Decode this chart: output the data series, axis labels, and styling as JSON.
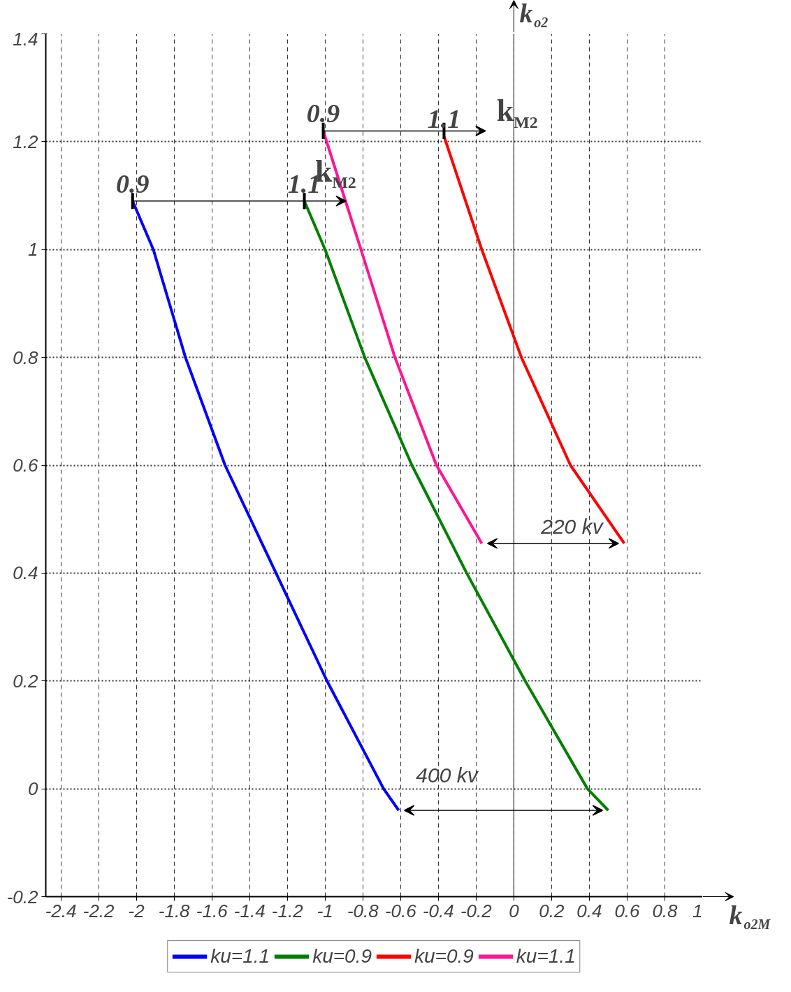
{
  "chart_data": {
    "type": "line",
    "xlabel": "k$_{o2M}$",
    "ylabel": "k$_{o2}$",
    "xlim": [
      -2.48,
      1.0
    ],
    "ylim": [
      -0.2,
      1.4
    ],
    "xticks": [
      -2.4,
      -2.2,
      -2,
      -1.8,
      -1.6,
      -1.4,
      -1.2,
      -1,
      -0.8,
      -0.6,
      -0.4,
      -0.2,
      0,
      0.2,
      0.4,
      0.6,
      0.8,
      1
    ],
    "yticks": [
      -0.2,
      0,
      0.2,
      0.4,
      0.6,
      0.8,
      1,
      1.2,
      1.4
    ],
    "grid": true,
    "legend": "bottom",
    "marker": "none",
    "line_style": "solid",
    "series": [
      {
        "name": "ku=1.1",
        "color": "#0000ff",
        "x": [
          -2.02,
          -1.91,
          -1.74,
          -1.53,
          -1.26,
          -0.99,
          -0.69,
          -0.61
        ],
        "values": [
          1.09,
          1.0,
          0.8,
          0.6,
          0.4,
          0.2,
          0.0,
          -0.04
        ]
      },
      {
        "name": "ku=0.9",
        "color": "#008000",
        "x": [
          -1.11,
          -1.0,
          -0.79,
          -0.54,
          -0.25,
          0.06,
          0.39,
          0.5
        ],
        "values": [
          1.09,
          1.0,
          0.8,
          0.6,
          0.4,
          0.2,
          0.0,
          -0.04
        ]
      },
      {
        "name": "ku=0.9",
        "color": "#ff0000",
        "x": [
          -0.37,
          -0.17,
          0.04,
          0.3,
          0.585
        ],
        "values": [
          1.21,
          1.0,
          0.8,
          0.6,
          0.455
        ]
      },
      {
        "name": "ku=1.1",
        "color": "#ff1493",
        "x": [
          -1.01,
          -0.81,
          -0.63,
          -0.41,
          -0.17
        ],
        "values": [
          1.22,
          1.0,
          0.8,
          0.6,
          0.455
        ]
      }
    ],
    "annotations": [
      {
        "text": "0.9",
        "x": -2.02,
        "y": 1.09
      },
      {
        "text": "1.1",
        "x": -1.11,
        "y": 1.09
      },
      "k$_{M2}$",
      {
        "text": "0.9",
        "x": -1.01,
        "y": 1.22
      },
      {
        "text": "1.1",
        "x": -0.37,
        "y": 1.21
      },
      "k$_{M2}$",
      "220 kv",
      {
        "text": "400 kv",
        "x": 0.5,
        "y": -0.04
      }
    ]
  }
}
